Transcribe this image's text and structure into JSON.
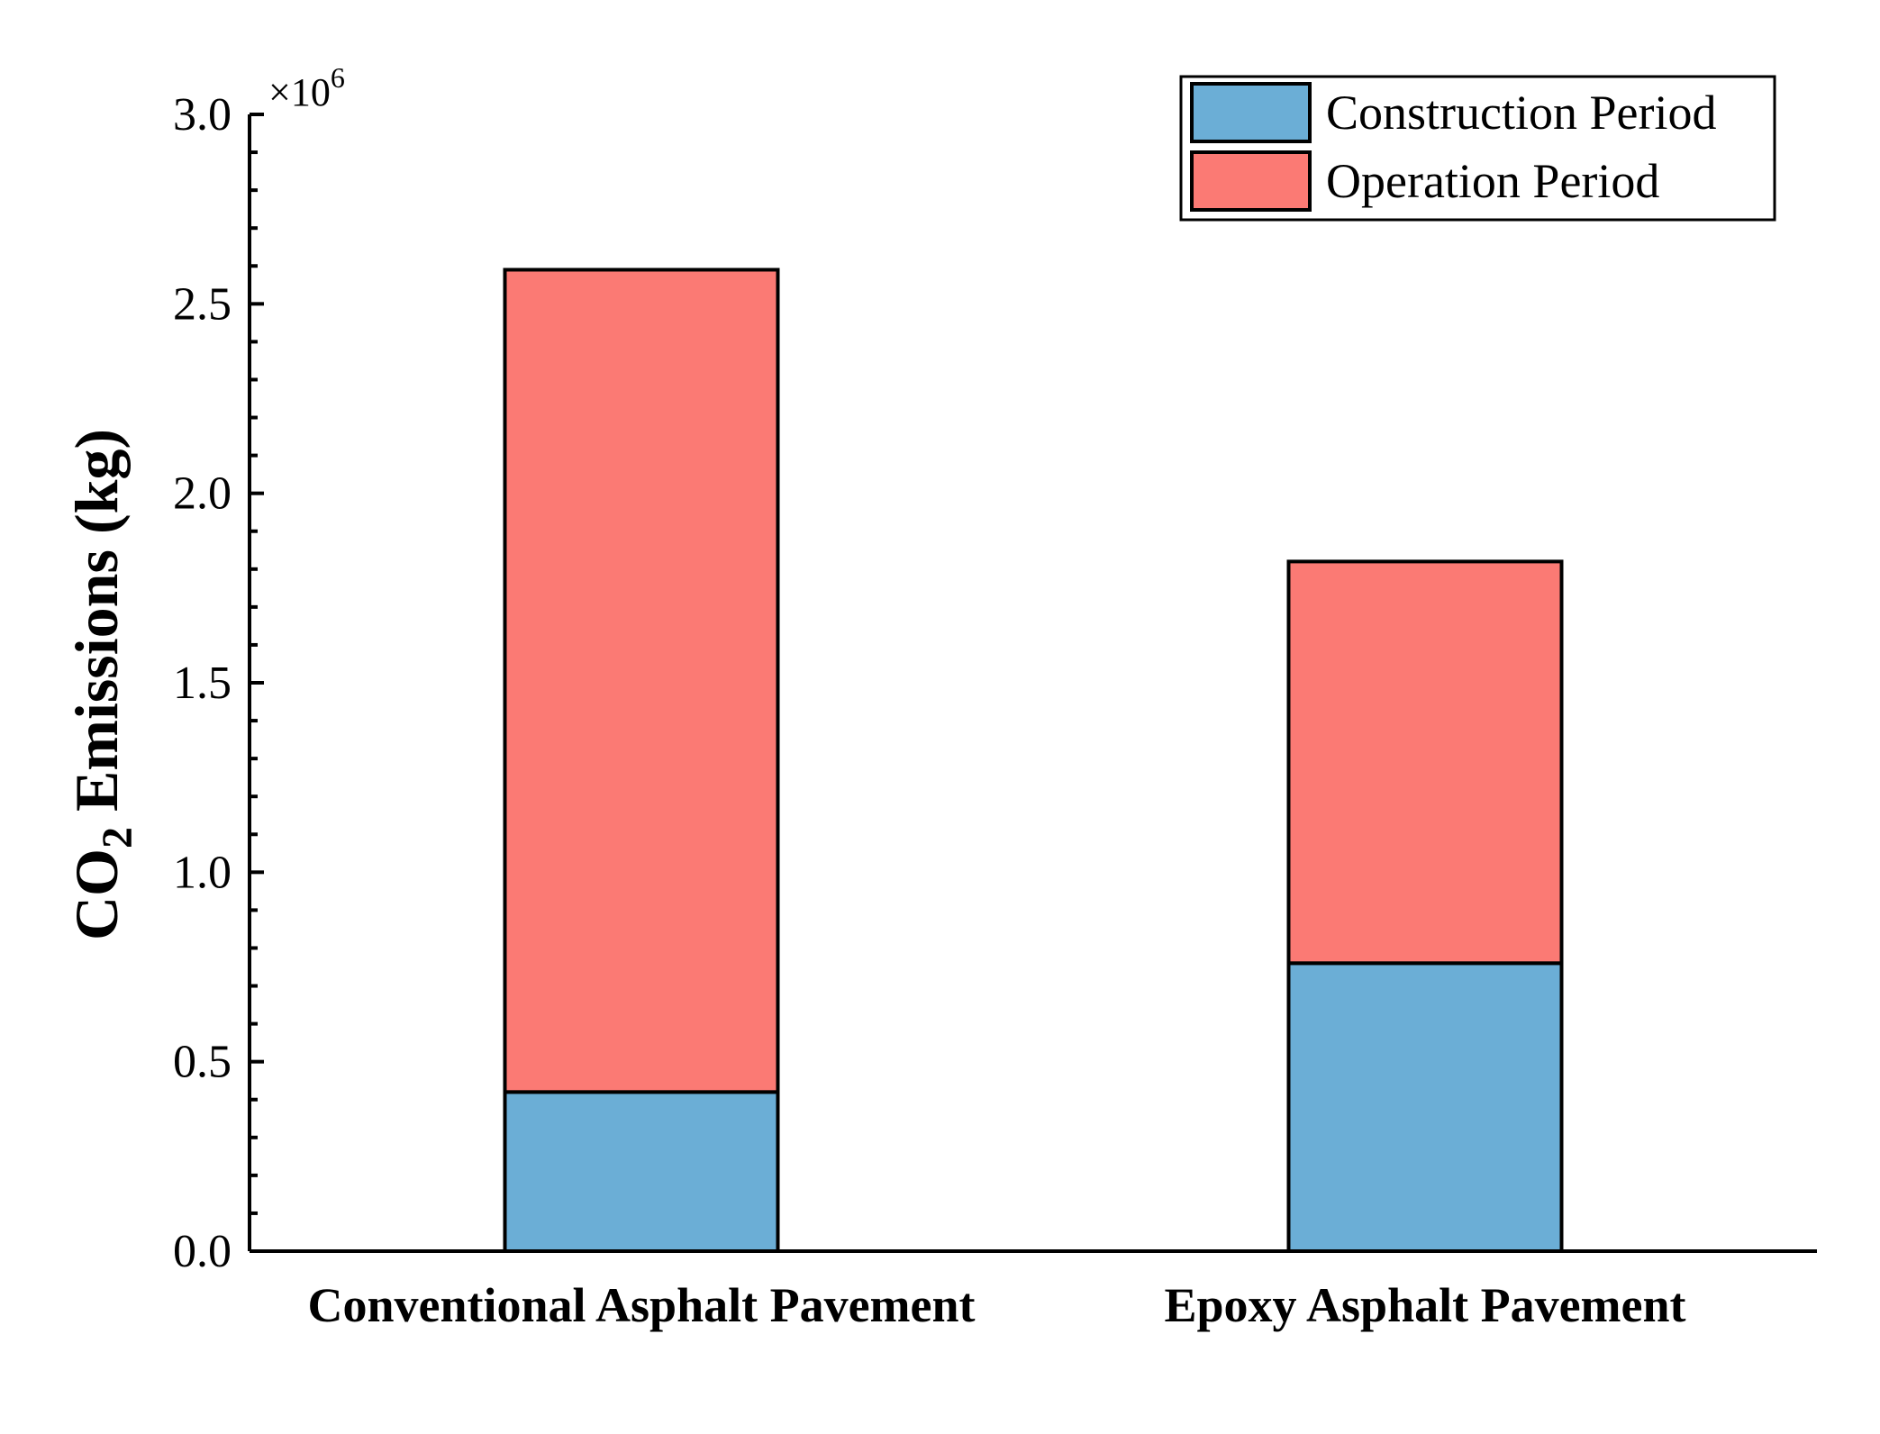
{
  "chart_data": {
    "type": "bar",
    "stacked": true,
    "title": "",
    "xlabel": "",
    "ylabel_main": "CO",
    "ylabel_sub": "2",
    "ylabel_rest": " Emissions (kg)",
    "y_multiplier_base": "×10",
    "y_multiplier_exp": "6",
    "categories": [
      "Conventional Asphalt Pavement",
      "Epoxy Asphalt Pavement"
    ],
    "series": [
      {
        "name": "Construction Period",
        "color": "#6baed6",
        "values": [
          0.42,
          0.76
        ]
      },
      {
        "name": "Operation Period",
        "color": "#fb7a74",
        "values": [
          2.17,
          1.06
        ]
      }
    ],
    "ylim": [
      0,
      3.0
    ],
    "yticks": [
      "0.0",
      "0.5",
      "1.0",
      "1.5",
      "2.0",
      "2.5",
      "3.0"
    ],
    "legend_position": "top-right",
    "grid": false
  }
}
